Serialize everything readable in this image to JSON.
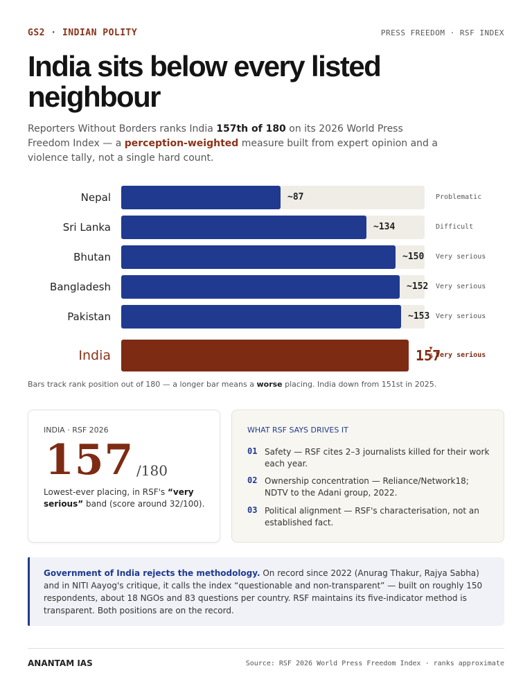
{
  "header": {
    "tag_left": "GS2 · INDIAN POLITY",
    "tag_right": "PRESS FREEDOM · RSF INDEX"
  },
  "headline": "India sits below every listed neighbour",
  "dek": {
    "p1": "Reporters Without Borders ranks India ",
    "b1": "157th of 180",
    "p2": " on its 2026 World Press Freedom Index — a ",
    "accent": "perception-weighted",
    "p3": " measure built from expert opinion and a violence tally, not a single hard count."
  },
  "chart_data": {
    "type": "bar",
    "orientation": "horizontal",
    "categories": [
      "Nepal",
      "Sri Lanka",
      "Bhutan",
      "Bangladesh",
      "Pakistan",
      "India"
    ],
    "values": [
      87,
      134,
      150,
      152,
      153,
      157
    ],
    "value_labels": [
      "~87",
      "~134",
      "~150",
      "~152",
      "~153",
      "157"
    ],
    "bands": [
      "Problematic",
      "Difficult",
      "Very serious",
      "Very serious",
      "Very serious",
      "Very serious"
    ],
    "highlight": "India",
    "highlight_change": {
      "direction": "down",
      "value": "6"
    },
    "xlim": [
      0,
      180
    ],
    "colors": {
      "bar": "#1f3a8f",
      "highlight": "#7e2b14",
      "track": "#f0ede7"
    }
  },
  "caption": {
    "p1": "Bars track rank position out of 180 — a longer bar means a ",
    "b1": "worse",
    "p2": " placing. India down from 151st in 2025."
  },
  "rank_card": {
    "kicker": "INDIA · RSF 2026",
    "rank": "157",
    "total": "/180",
    "note_p1": "Lowest-ever placing, in RSF's ",
    "note_b1": "“very serious”",
    "note_p2": " band (score around 32/100)."
  },
  "drivers_card": {
    "kicker": "WHAT RSF SAYS DRIVES IT",
    "items": [
      {
        "num": "01",
        "text": "Safety — RSF cites 2–3 journalists killed for their work each year."
      },
      {
        "num": "02",
        "text": "Ownership concentration — Reliance/Network18; NDTV to the Adani group, 2022."
      },
      {
        "num": "03",
        "text": "Political alignment — RSF's characterisation, not an established fact."
      }
    ]
  },
  "callout": {
    "lead": "Government of India rejects the methodology.",
    "body": " On record since 2022 (Anurag Thakur, Rajya Sabha) and in NITI Aayog's critique, it calls the index “questionable and non-transparent” — built on roughly 150 respondents, about 18 NGOs and 83 questions per country. RSF maintains its five-indicator method is transparent. Both positions are on the record."
  },
  "footer": {
    "brand": "ANANTAM IAS",
    "source": "Source: RSF 2026 World Press Freedom Index · ranks approximate"
  }
}
